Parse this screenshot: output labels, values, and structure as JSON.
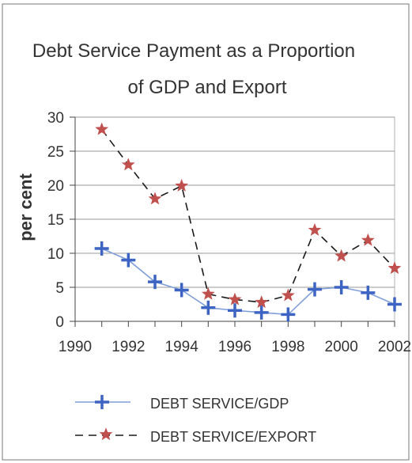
{
  "chart_data": {
    "type": "line",
    "title_line1": "Debt Service Payment as a Proportion",
    "title_line2": "of GDP and Export",
    "xlabel": "",
    "ylabel": "per cent",
    "xlim": [
      1990,
      2002
    ],
    "ylim": [
      0,
      30
    ],
    "x_ticks": [
      1990,
      1992,
      1994,
      1996,
      1998,
      2000,
      2002
    ],
    "y_ticks": [
      0,
      5,
      10,
      15,
      20,
      25,
      30
    ],
    "grid": true,
    "legend_position": "bottom",
    "series": [
      {
        "name": "DEBT SERVICE/GDP",
        "color": "#7f9fd8",
        "marker_color": "#3d64c2",
        "marker": "plus",
        "line_style": "solid",
        "x": [
          1991,
          1992,
          1993,
          1994,
          1995,
          1996,
          1997,
          1998,
          1999,
          2000,
          2001,
          2002
        ],
        "values": [
          10.7,
          9.0,
          5.8,
          4.6,
          2.0,
          1.6,
          1.3,
          1.0,
          4.7,
          5.0,
          4.2,
          2.5
        ]
      },
      {
        "name": "DEBT SERVICE/EXPORT",
        "color": "#1a1a1a",
        "marker_color": "#c0504d",
        "marker": "star",
        "line_style": "dashed",
        "x": [
          1991,
          1992,
          1993,
          1994,
          1995,
          1996,
          1997,
          1998,
          1999,
          2000,
          2001,
          2002
        ],
        "values": [
          28.2,
          23.0,
          18.0,
          19.9,
          4.0,
          3.2,
          2.8,
          3.8,
          13.4,
          9.6,
          11.9,
          7.8
        ]
      }
    ]
  }
}
